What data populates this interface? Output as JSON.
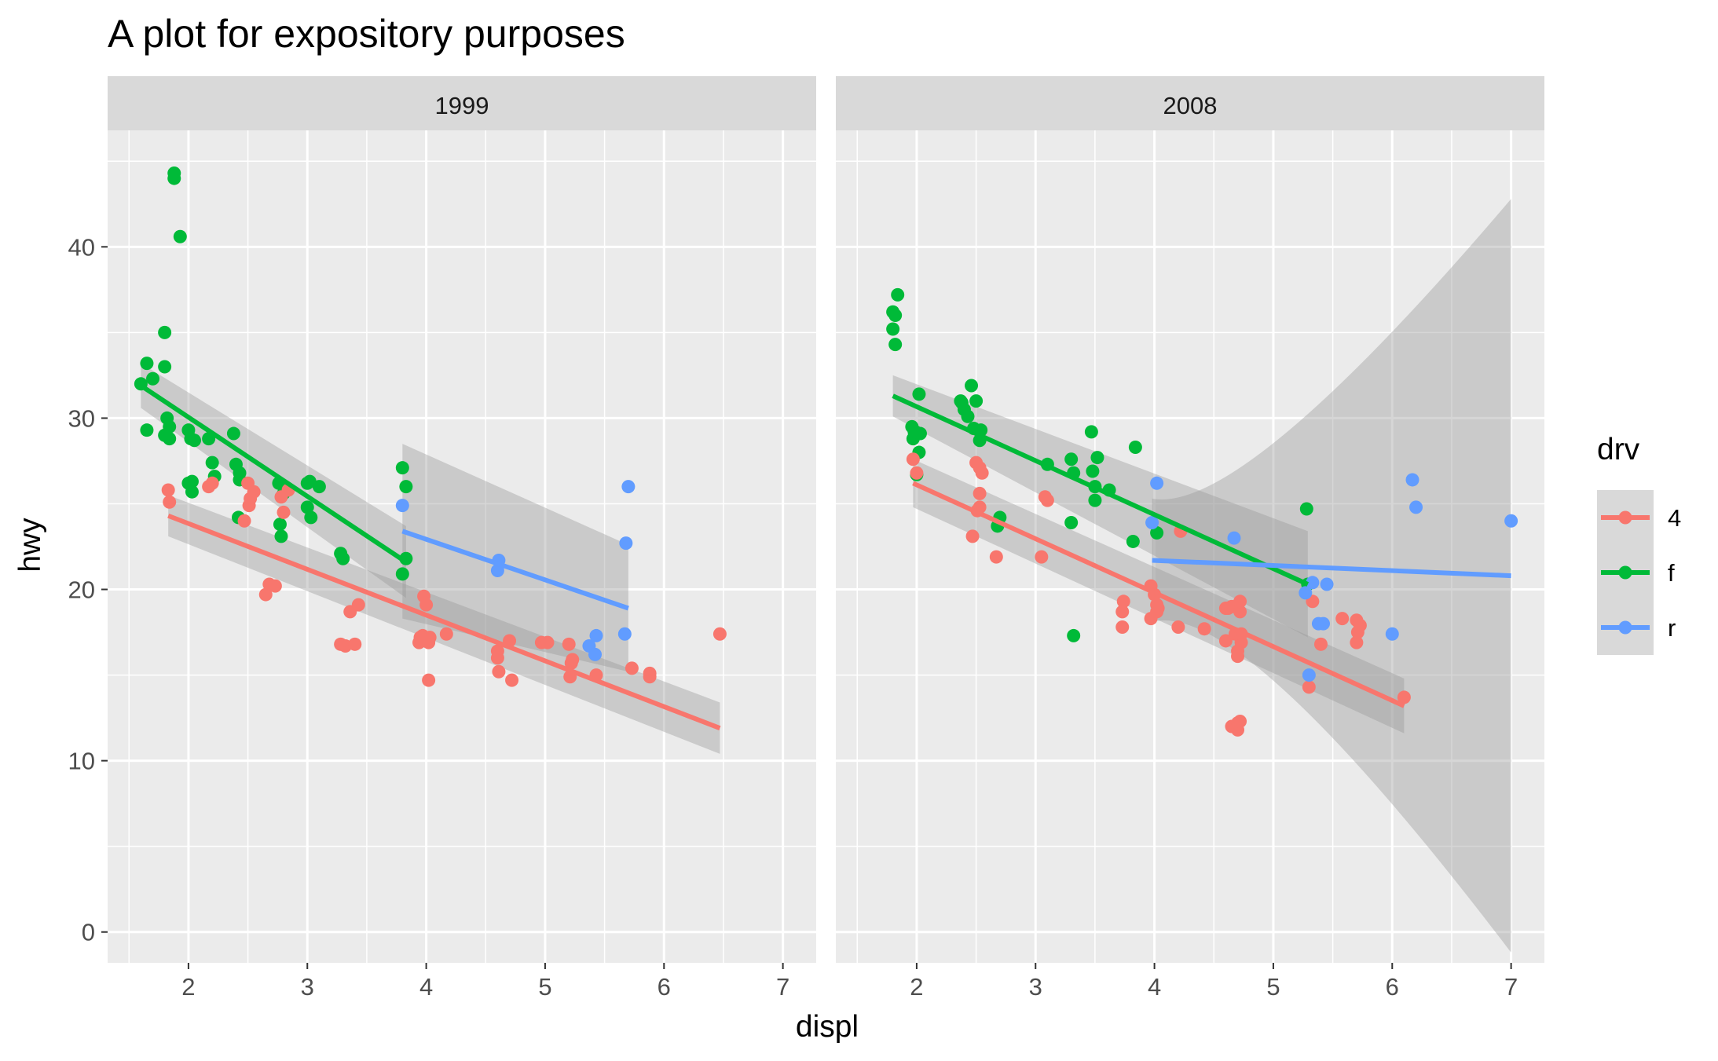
{
  "chart_data": {
    "type": "scatter",
    "title": "A plot for expository purposes",
    "xlabel": "displ",
    "ylabel": "hwy",
    "xlim": [
      1.32,
      7.28
    ],
    "ylim": [
      -1.8,
      46.8
    ],
    "x_ticks": [
      2,
      3,
      4,
      5,
      6,
      7
    ],
    "y_ticks": [
      0,
      10,
      20,
      30,
      40
    ],
    "legend": {
      "title": "drv",
      "position": "right",
      "entries": [
        {
          "key": "4",
          "label": "4",
          "color": "#F8766D"
        },
        {
          "key": "f",
          "label": "f",
          "color": "#00BA38"
        },
        {
          "key": "r",
          "label": "r",
          "color": "#619CFF"
        }
      ]
    },
    "panels": [
      {
        "label": "1999",
        "points": {
          "f": [
            [
              1.6,
              32
            ],
            [
              1.65,
              33.2
            ],
            [
              1.65,
              29.3
            ],
            [
              1.7,
              32.3
            ],
            [
              1.8,
              35
            ],
            [
              1.8,
              33
            ],
            [
              1.8,
              29
            ],
            [
              1.82,
              30
            ],
            [
              1.84,
              28.8
            ],
            [
              1.84,
              29.5
            ],
            [
              1.88,
              44.3
            ],
            [
              1.88,
              44
            ],
            [
              1.93,
              40.6
            ],
            [
              2,
              26.2
            ],
            [
              2,
              29.3
            ],
            [
              2.02,
              28.8
            ],
            [
              2.03,
              26.3
            ],
            [
              2.03,
              25.7
            ],
            [
              2.05,
              28.7
            ],
            [
              2.17,
              28.8
            ],
            [
              2.2,
              27.4
            ],
            [
              2.22,
              26.6
            ],
            [
              2.38,
              29.1
            ],
            [
              2.4,
              27.3
            ],
            [
              2.43,
              26.4
            ],
            [
              2.42,
              24.2
            ],
            [
              2.43,
              26.8
            ],
            [
              2.76,
              26.2
            ],
            [
              2.77,
              23.8
            ],
            [
              2.78,
              23.1
            ],
            [
              2.8,
              25.6
            ],
            [
              3,
              26.2
            ],
            [
              3.02,
              26.3
            ],
            [
              3.03,
              24.2
            ],
            [
              3,
              24.8
            ],
            [
              3.1,
              26
            ],
            [
              3.28,
              22.1
            ],
            [
              3.3,
              21.8
            ],
            [
              3.8,
              27.1
            ],
            [
              3.83,
              21.8
            ],
            [
              3.8,
              20.9
            ],
            [
              3.83,
              26
            ]
          ],
          "4": [
            [
              1.83,
              25.8
            ],
            [
              1.84,
              25.1
            ],
            [
              2.17,
              26
            ],
            [
              2.2,
              26.2
            ],
            [
              2.47,
              24
            ],
            [
              2.5,
              26.2
            ],
            [
              2.52,
              25.3
            ],
            [
              2.51,
              24.9
            ],
            [
              2.55,
              25.7
            ],
            [
              2.65,
              19.7
            ],
            [
              2.68,
              20.3
            ],
            [
              2.73,
              20.2
            ],
            [
              2.78,
              25.4
            ],
            [
              2.8,
              24.5
            ],
            [
              2.84,
              25.8
            ],
            [
              3.28,
              16.8
            ],
            [
              3.32,
              16.7
            ],
            [
              3.36,
              18.7
            ],
            [
              3.4,
              16.8
            ],
            [
              3.43,
              19.1
            ],
            [
              3.95,
              17.2
            ],
            [
              3.94,
              16.9
            ],
            [
              3.98,
              19.6
            ],
            [
              4,
              19.1
            ],
            [
              4.02,
              16.9
            ],
            [
              4.02,
              14.7
            ],
            [
              3.97,
              17.3
            ],
            [
              4.03,
              17.2
            ],
            [
              4.17,
              17.4
            ],
            [
              4.6,
              16.4
            ],
            [
              4.6,
              16
            ],
            [
              4.61,
              15.2
            ],
            [
              4.7,
              17
            ],
            [
              4.72,
              14.7
            ],
            [
              4.97,
              16.9
            ],
            [
              5.02,
              16.9
            ],
            [
              5.2,
              16.8
            ],
            [
              5.21,
              14.9
            ],
            [
              5.22,
              15.7
            ],
            [
              5.23,
              15.9
            ],
            [
              5.43,
              15
            ],
            [
              5.73,
              15.4
            ],
            [
              5.88,
              15.1
            ],
            [
              5.88,
              14.9
            ],
            [
              6.47,
              17.4
            ]
          ],
          "r": [
            [
              3.8,
              24.9
            ],
            [
              4.6,
              21.1
            ],
            [
              4.61,
              21.7
            ],
            [
              5.37,
              16.7
            ],
            [
              5.42,
              16.2
            ],
            [
              5.43,
              17.3
            ],
            [
              5.67,
              17.4
            ],
            [
              5.68,
              22.7
            ],
            [
              5.7,
              26
            ]
          ]
        },
        "fits": [
          {
            "drv": "f",
            "x": [
              1.6,
              3.83
            ],
            "y": [
              31.9,
              21.6
            ],
            "lower": [
              30.6,
              19.5
            ],
            "upper": [
              33.2,
              23.7
            ]
          },
          {
            "drv": "4",
            "x": [
              1.83,
              6.47
            ],
            "y": [
              24.3,
              11.9
            ],
            "lower": [
              23.1,
              10.4
            ],
            "upper": [
              25.5,
              13.4
            ]
          },
          {
            "drv": "r",
            "x": [
              3.8,
              5.7
            ],
            "y": [
              23.4,
              18.9
            ],
            "lower": [
              18.3,
              15.2
            ],
            "upper": [
              28.5,
              22.6
            ]
          }
        ]
      },
      {
        "label": "2008",
        "points": {
          "f": [
            [
              1.8,
              36.2
            ],
            [
              1.8,
              35.2
            ],
            [
              1.82,
              36
            ],
            [
              1.84,
              37.2
            ],
            [
              1.82,
              34.3
            ],
            [
              1.96,
              29.5
            ],
            [
              1.97,
              28.8
            ],
            [
              1.98,
              29.2
            ],
            [
              1.99,
              29.2
            ],
            [
              2,
              26.7
            ],
            [
              2.02,
              28
            ],
            [
              2.03,
              29.1
            ],
            [
              2.02,
              31.4
            ],
            [
              2.37,
              31
            ],
            [
              2.38,
              30.9
            ],
            [
              2.4,
              30.5
            ],
            [
              2.43,
              30.1
            ],
            [
              2.46,
              31.9
            ],
            [
              2.48,
              29.4
            ],
            [
              2.5,
              31
            ],
            [
              2.53,
              28.7
            ],
            [
              2.54,
              29.3
            ],
            [
              2.68,
              23.7
            ],
            [
              2.7,
              24.2
            ],
            [
              3.1,
              27.3
            ],
            [
              3.3,
              27.6
            ],
            [
              3.3,
              23.9
            ],
            [
              3.32,
              17.3
            ],
            [
              3.32,
              26.8
            ],
            [
              3.48,
              26.9
            ],
            [
              3.47,
              29.2
            ],
            [
              3.5,
              25.2
            ],
            [
              3.52,
              27.7
            ],
            [
              3.5,
              26
            ],
            [
              3.62,
              25.8
            ],
            [
              3.82,
              22.8
            ],
            [
              3.84,
              28.3
            ],
            [
              4.02,
              23.3
            ],
            [
              5.28,
              24.7
            ],
            [
              5.29,
              20.3
            ]
          ],
          "4": [
            [
              1.97,
              27.6
            ],
            [
              2,
              26.8
            ],
            [
              2.47,
              23.1
            ],
            [
              2.5,
              27.4
            ],
            [
              2.51,
              24.6
            ],
            [
              2.53,
              25.6
            ],
            [
              2.53,
              24.8
            ],
            [
              2.55,
              26.8
            ],
            [
              2.53,
              27.1
            ],
            [
              2.67,
              21.9
            ],
            [
              3.05,
              21.9
            ],
            [
              3.08,
              25.4
            ],
            [
              3.1,
              25.2
            ],
            [
              3.73,
              17.8
            ],
            [
              3.73,
              18.7
            ],
            [
              3.74,
              19.3
            ],
            [
              3.97,
              18.3
            ],
            [
              3.97,
              20.2
            ],
            [
              4,
              19.7
            ],
            [
              4.02,
              18.7
            ],
            [
              4.02,
              19.1
            ],
            [
              4.03,
              18.9
            ],
            [
              4.2,
              17.8
            ],
            [
              4.22,
              23.4
            ],
            [
              4.42,
              17.7
            ],
            [
              4.6,
              17
            ],
            [
              4.6,
              18.9
            ],
            [
              4.62,
              18.9
            ],
            [
              4.65,
              12
            ],
            [
              4.65,
              19
            ],
            [
              4.68,
              17.4
            ],
            [
              4.7,
              11.8
            ],
            [
              4.7,
              16.4
            ],
            [
              4.7,
              12.2
            ],
            [
              4.7,
              16.1
            ],
            [
              4.72,
              12.3
            ],
            [
              4.72,
              18.7
            ],
            [
              4.73,
              16.9
            ],
            [
              4.72,
              19.3
            ],
            [
              4.73,
              17.4
            ],
            [
              5.3,
              14.3
            ],
            [
              5.33,
              19.3
            ],
            [
              5.4,
              16.8
            ],
            [
              5.58,
              18.3
            ],
            [
              5.7,
              16.9
            ],
            [
              5.7,
              18.2
            ],
            [
              5.71,
              17.5
            ],
            [
              5.73,
              17.9
            ],
            [
              6.1,
              13.7
            ]
          ],
          "r": [
            [
              3.98,
              23.9
            ],
            [
              4.02,
              26.2
            ],
            [
              4.67,
              23
            ],
            [
              5.27,
              19.8
            ],
            [
              5.3,
              15
            ],
            [
              5.33,
              20.4
            ],
            [
              5.38,
              18
            ],
            [
              5.42,
              18
            ],
            [
              5.45,
              20.3
            ],
            [
              6,
              17.4
            ],
            [
              6.17,
              26.4
            ],
            [
              6.2,
              24.8
            ],
            [
              7,
              24
            ]
          ]
        },
        "fits": [
          {
            "drv": "f",
            "x": [
              1.8,
              5.29
            ],
            "y": [
              31.3,
              20.3
            ],
            "lower": [
              30.1,
              17.2
            ],
            "upper": [
              32.5,
              23.4
            ]
          },
          {
            "drv": "4",
            "x": [
              1.97,
              6.1
            ],
            "y": [
              26.2,
              13.2
            ],
            "lower": [
              24.8,
              11.6
            ],
            "upper": [
              27.6,
              14.8
            ]
          },
          {
            "drv": "r",
            "x": [
              3.98,
              7.0
            ],
            "y": [
              21.7,
              20.8
            ],
            "lower": [
              18.1,
              -1.2
            ],
            "upper": [
              25.3,
              42.8
            ]
          }
        ]
      }
    ]
  }
}
